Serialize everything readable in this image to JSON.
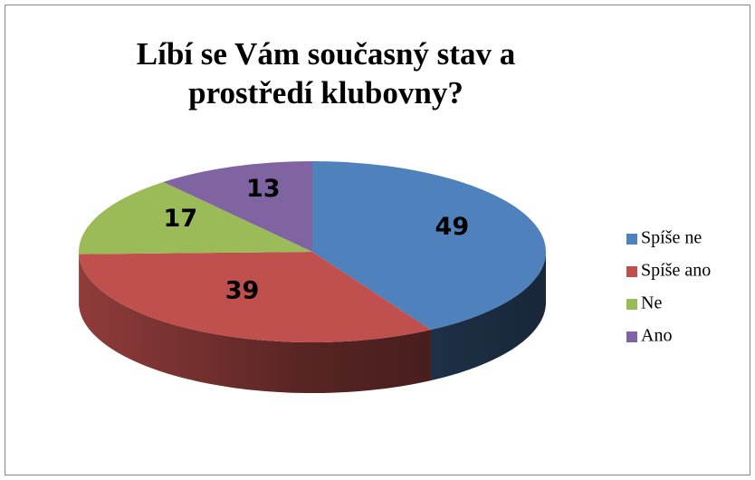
{
  "chart_data": {
    "type": "pie",
    "title": "Líbí se Vám současný stav a prostředí klubovny?",
    "categories": [
      "Spíše ne",
      "Spíše ano",
      "Ne",
      "Ano"
    ],
    "values": [
      49,
      39,
      17,
      13
    ],
    "colors": [
      "#4f81bd",
      "#c0504d",
      "#9bbb59",
      "#8064a2"
    ],
    "legend": "right"
  }
}
